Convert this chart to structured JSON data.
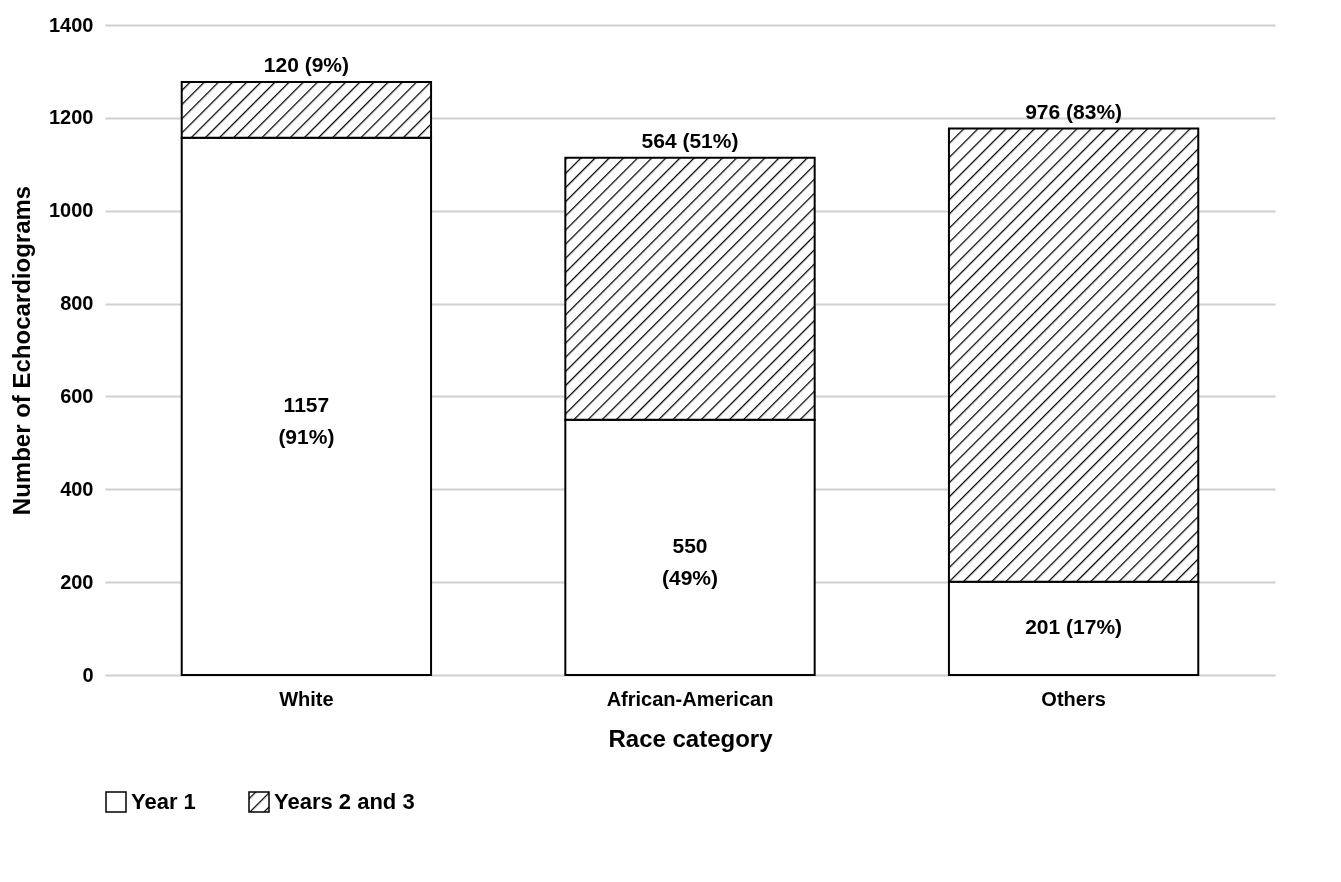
{
  "chart_data": {
    "type": "bar",
    "stacked": true,
    "xlabel": "Race category",
    "ylabel": "Number of Echocardiograms",
    "categories": [
      "White",
      "African-American",
      "Others"
    ],
    "series": [
      {
        "name": "Year 1",
        "color": "#ffffff",
        "values": [
          1157,
          550,
          201
        ],
        "value_labels": [
          "1157 (91%)",
          "550 (49%)",
          "201 (17%)"
        ]
      },
      {
        "name": "Years 2 and 3",
        "color": "#000000",
        "values": [
          120,
          564,
          976
        ],
        "value_labels": [
          "120 (9%)",
          "564 (51%)",
          "976 (83%)"
        ]
      }
    ],
    "ylim": [
      0,
      1400
    ],
    "yticks": [
      0,
      200,
      400,
      600,
      800,
      1000,
      1200,
      1400
    ],
    "grid": "y",
    "legend": "bottom"
  }
}
